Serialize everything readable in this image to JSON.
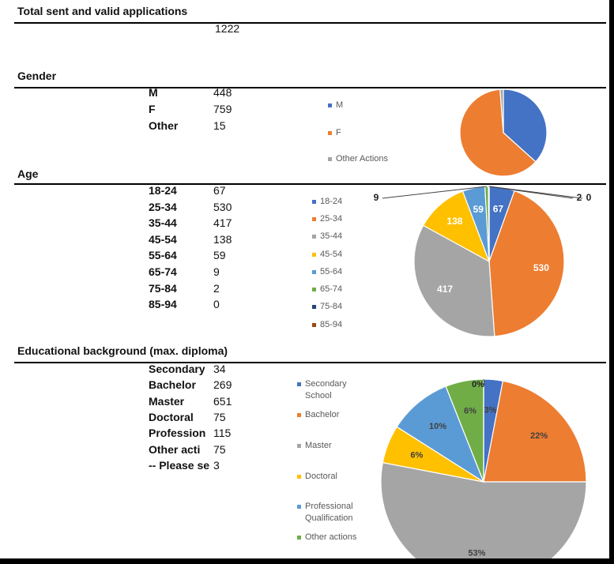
{
  "total": {
    "title": "Total sent and valid applications",
    "value": "1222"
  },
  "gender": {
    "title": "Gender",
    "rows": [
      [
        "M",
        "448"
      ],
      [
        "F",
        "759"
      ],
      [
        "Other",
        "15"
      ]
    ]
  },
  "age": {
    "title": "Age",
    "rows": [
      [
        "18-24",
        "67"
      ],
      [
        "25-34",
        "530"
      ],
      [
        "35-44",
        "417"
      ],
      [
        "45-54",
        "138"
      ],
      [
        "55-64",
        "59"
      ],
      [
        "65-74",
        "9"
      ],
      [
        "75-84",
        "2"
      ],
      [
        "85-94",
        "0"
      ]
    ]
  },
  "education": {
    "title": "Educational background (max. diploma)",
    "rows": [
      [
        "Secondary",
        "34"
      ],
      [
        "Bachelor",
        "269"
      ],
      [
        "Master",
        "651"
      ],
      [
        "Doctoral",
        "75"
      ],
      [
        "Profession",
        "115"
      ],
      [
        "Other acti",
        "75"
      ],
      [
        "-- Please se",
        "3"
      ]
    ]
  },
  "chart_data": [
    {
      "type": "pie",
      "categories": [
        "M",
        "F",
        "Other Actions"
      ],
      "values": [
        448,
        759,
        15
      ],
      "colors": [
        "#4472c4",
        "#ed7d31",
        "#a5a5a5"
      ],
      "data_labels": false
    },
    {
      "type": "pie",
      "categories": [
        "18-24",
        "25-34",
        "35-44",
        "45-54",
        "55-64",
        "65-74",
        "75-84",
        "85-94"
      ],
      "values": [
        67,
        530,
        417,
        138,
        59,
        9,
        2,
        0
      ],
      "colors": [
        "#4472c4",
        "#ed7d31",
        "#a5a5a5",
        "#ffc000",
        "#5b9bd5",
        "#70ad47",
        "#264478",
        "#9e480e"
      ],
      "data_labels": true
    },
    {
      "type": "pie",
      "categories": [
        "Secondary School",
        "Bachelor",
        "Master",
        "Doctoral",
        "Professional Qualification",
        "Other actions",
        null
      ],
      "values": [
        3,
        22,
        53,
        6,
        10,
        6,
        0
      ],
      "value_labels": [
        "3%",
        "22%",
        "53%",
        "6%",
        "10%",
        "6%",
        "0%"
      ],
      "colors": [
        "#4472c4",
        "#ed7d31",
        "#a5a5a5",
        "#ffc000",
        "#5b9bd5",
        "#70ad47",
        "#264478"
      ],
      "data_labels": true
    }
  ]
}
